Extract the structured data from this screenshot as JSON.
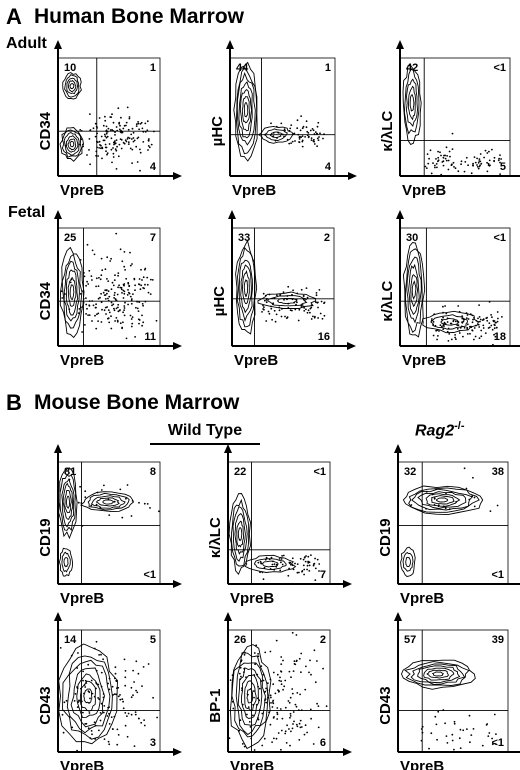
{
  "section_a": {
    "letter": "A",
    "title": "Human Bone Marrow",
    "adult_label": "Adult",
    "fetal_label": "Fetal"
  },
  "section_b": {
    "letter": "B",
    "title": "Mouse Bone Marrow",
    "wild_type_label": "Wild Type",
    "rag2_label": "Rag2",
    "rag2_superscript": "-/-"
  },
  "panels": [
    {
      "id": "a-adult-cd34",
      "x_label": "VpreB",
      "y_label": "CD34",
      "q_ul": "10",
      "q_ur": "1",
      "q_lr": "4"
    },
    {
      "id": "a-adult-muhc",
      "x_label": "VpreB",
      "y_label": "µHC",
      "q_ul": "44",
      "q_ur": "1",
      "q_lr": "4"
    },
    {
      "id": "a-adult-klc",
      "x_label": "VpreB",
      "y_label": "κ/λLC",
      "q_ul": "42",
      "q_ur": "<1",
      "q_lr": "5"
    },
    {
      "id": "a-fetal-cd34",
      "x_label": "VpreB",
      "y_label": "CD34",
      "q_ul": "25",
      "q_ur": "7",
      "q_lr": "11"
    },
    {
      "id": "a-fetal-muhc",
      "x_label": "VpreB",
      "y_label": "µHC",
      "q_ul": "33",
      "q_ur": "2",
      "q_lr": "16"
    },
    {
      "id": "a-fetal-klc",
      "x_label": "VpreB",
      "y_label": "κ/λLC",
      "q_ul": "30",
      "q_ur": "<1",
      "q_lr": "18"
    },
    {
      "id": "b-wt-cd19",
      "x_label": "VpreB",
      "y_label": "CD19",
      "q_ul": "81",
      "q_ur": "8",
      "q_lr": "<1"
    },
    {
      "id": "b-wt-klc",
      "x_label": "VpreB",
      "y_label": "κ/λLC",
      "q_ul": "22",
      "q_ur": "<1",
      "q_lr": "7"
    },
    {
      "id": "b-rag-cd19",
      "x_label": "VpreB",
      "y_label": "CD19",
      "q_ul": "32",
      "q_ur": "38",
      "q_lr": "<1"
    },
    {
      "id": "b-wt-cd43",
      "x_label": "VpreB",
      "y_label": "CD43",
      "q_ul": "14",
      "q_ur": "5",
      "q_lr": "3"
    },
    {
      "id": "b-wt-bp1",
      "x_label": "VpreB",
      "y_label": "BP-1",
      "q_ul": "26",
      "q_ur": "2",
      "q_lr": "6"
    },
    {
      "id": "b-rag-cd43",
      "x_label": "VpreB",
      "y_label": "CD43",
      "q_ul": "57",
      "q_ur": "39",
      "q_lr": "<1"
    }
  ]
}
